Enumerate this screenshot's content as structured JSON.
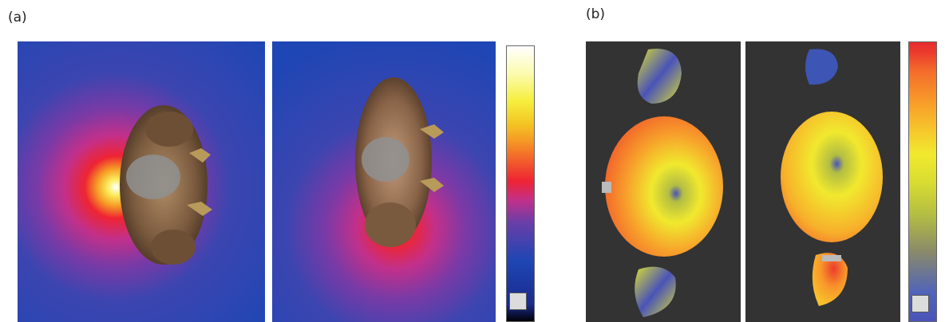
{
  "panels": [
    {
      "label": "(a)"
    },
    {
      "label": "(b)"
    }
  ],
  "colorbar_a": [
    "#000000",
    "#1a2a8c",
    "#1e46b4",
    "#6a3ea8",
    "#c2308a",
    "#ee2433",
    "#f36b2a",
    "#f59d25",
    "#f3c624",
    "#f6ef3e",
    "#fbfbb0",
    "#ffffff"
  ],
  "colorbar_b": [
    "#4a53b8",
    "#4f63bc",
    "#8a8a6a",
    "#b3bd43",
    "#d9dd31",
    "#f1e92e",
    "#f7c02b",
    "#f8952a",
    "#f36a2b",
    "#ec3c2d",
    "#e52a2f"
  ],
  "colors": {
    "bg_a": "#1e46b4",
    "bg_b": "#333333",
    "body": "#8b6a4c",
    "hot": "#ffffff"
  }
}
